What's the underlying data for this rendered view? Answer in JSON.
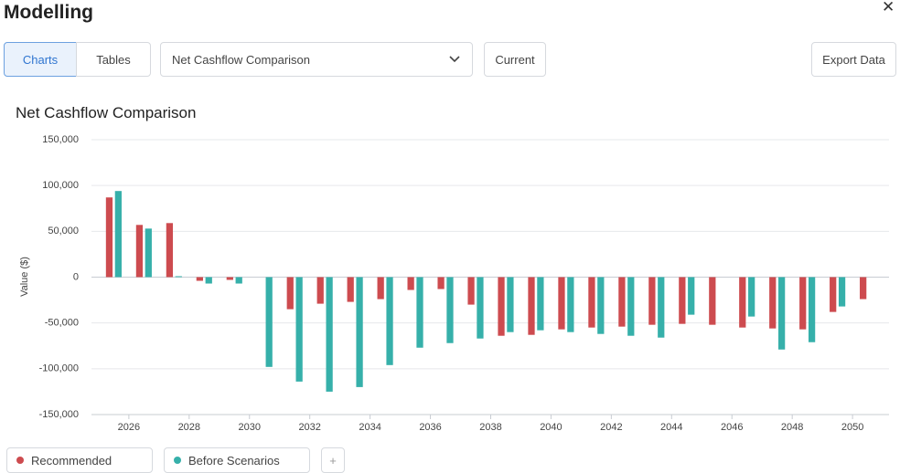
{
  "header": {
    "title": "Modelling",
    "close": "✕"
  },
  "toolbar": {
    "tabs": [
      "Charts",
      "Tables"
    ],
    "active_tab": 0,
    "dropdown": "Net Cashflow Comparison",
    "scenario_button": "Current",
    "export_button": "Export Data"
  },
  "legend_add": "+",
  "chart_data": {
    "type": "bar",
    "title": "Net Cashflow Comparison",
    "y_label": "Value ($)",
    "x": [
      2025,
      2026,
      2027,
      2028,
      2029,
      2030,
      2031,
      2032,
      2033,
      2034,
      2035,
      2036,
      2037,
      2038,
      2039,
      2040,
      2041,
      2042,
      2043,
      2044,
      2045,
      2046,
      2047,
      2048,
      2049,
      2050
    ],
    "series": [
      {
        "name": "Recommended",
        "color": "#cd4b4f",
        "values": [
          87000,
          57000,
          59000,
          -4000,
          -3000,
          0,
          -35000,
          -29000,
          -27000,
          -24000,
          -14000,
          -13000,
          -30000,
          -64000,
          -63000,
          -57000,
          -55000,
          -54000,
          -52000,
          -51000,
          -52000,
          -55000,
          -56000,
          -57000,
          -38000,
          -24000
        ]
      },
      {
        "name": "Before Scenarios",
        "color": "#36b0aa",
        "values": [
          94000,
          53000,
          1000,
          -7000,
          -7000,
          -98000,
          -114000,
          -125000,
          -120000,
          -96000,
          -77000,
          -72000,
          -67000,
          -60000,
          -58000,
          -60000,
          -62000,
          -64000,
          -66000,
          -41000,
          0,
          -43000,
          -79000,
          -71000,
          -32000,
          0
        ]
      }
    ],
    "xlim": [
      2024.76,
      2051.21
    ],
    "xticks": [
      2026,
      2028,
      2030,
      2032,
      2034,
      2036,
      2038,
      2040,
      2042,
      2044,
      2046,
      2048,
      2050
    ],
    "ylim": [
      -150000,
      150000
    ],
    "yticks": [
      {
        "value": -150000,
        "label": "-150,000"
      },
      {
        "value": -100000,
        "label": "-100,000"
      },
      {
        "value": -50000,
        "label": "-50,000"
      },
      0,
      {
        "value": 50000,
        "label": "50,000"
      },
      {
        "value": 100000,
        "label": "100,000"
      },
      {
        "value": 150000,
        "label": "150,000"
      }
    ],
    "grid": true
  }
}
